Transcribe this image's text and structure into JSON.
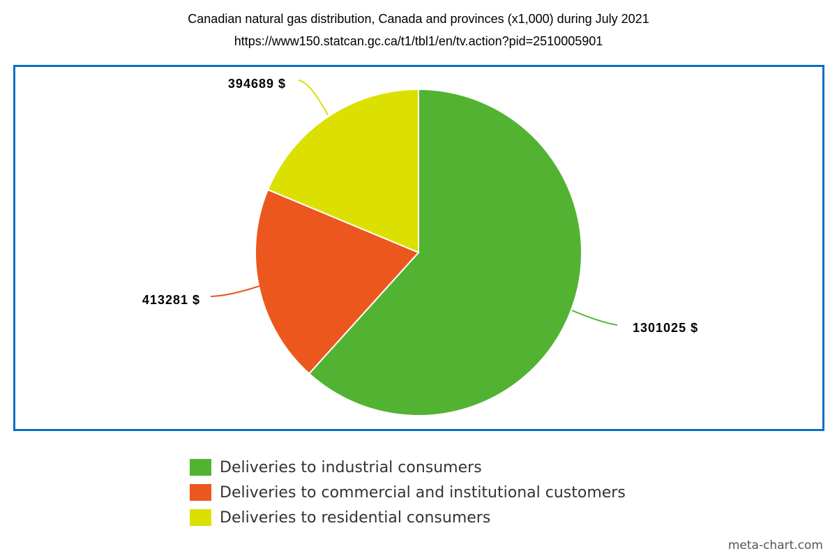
{
  "chart_data": {
    "type": "pie",
    "title": "Canadian natural gas distribution, Canada and provinces (x1,000) during July 2021",
    "subtitle": "https://www150.statcan.gc.ca/t1/tbl1/en/tv.action?pid=2510005901",
    "slices": [
      {
        "name": "Deliveries to industrial consumers",
        "value": 1301025,
        "label": "1301025 $",
        "color": "#52b332"
      },
      {
        "name": "Deliveries to commercial and institutional customers",
        "value": 413281,
        "label": "413281 $",
        "color": "#ec571e"
      },
      {
        "name": "Deliveries to residential consumers",
        "value": 394689,
        "label": "394689 $",
        "color": "#dbe000"
      }
    ],
    "legend_position": "bottom"
  },
  "watermark": "meta-chart.com"
}
